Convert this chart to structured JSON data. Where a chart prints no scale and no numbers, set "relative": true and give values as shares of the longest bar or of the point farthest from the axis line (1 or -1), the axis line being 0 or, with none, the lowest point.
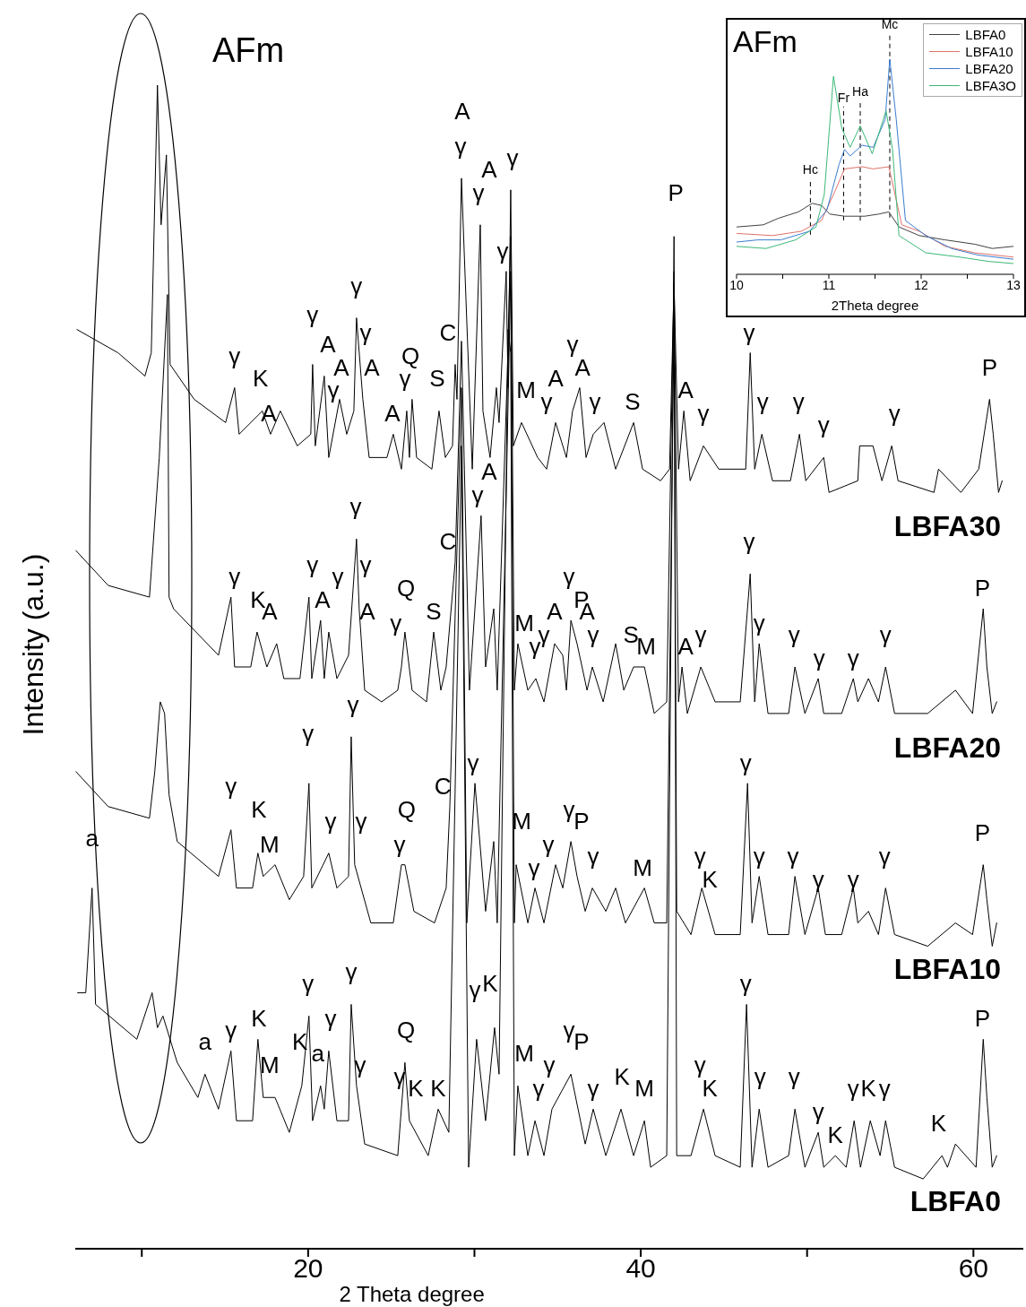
{
  "chart_data": [
    {
      "type": "line",
      "xlabel": "2 Theta degree",
      "ylabel": "Intensity (a.u.)",
      "relative": true,
      "xlim": [
        6,
        63
      ],
      "xticks": [
        {
          "value": 10,
          "label": null
        },
        20,
        {
          "value": 30,
          "label": null
        },
        40,
        {
          "value": 50,
          "label": null
        },
        60
      ],
      "series": [
        {
          "name": "LBFA30",
          "color": "#000000",
          "x": [
            6.1,
            8.57,
            10.19,
            10.57,
            10.94,
            11.16,
            11.48,
            11.7,
            13.15,
            15.04,
            15.58,
            15.85,
            17.25,
            17.74,
            18.33,
            19.35,
            20.16,
            20.27,
            20.43,
            20.97,
            21.24,
            21.89,
            22.32,
            22.75,
            22.91,
            23.29,
            23.67,
            24.74,
            25.12,
            25.61,
            25.93,
            26.09,
            26.25,
            26.52,
            27.44,
            27.87,
            28.25,
            28.68,
            28.84,
            28.95,
            29.22,
            29.87,
            30.35,
            30.51,
            30.94,
            31.32,
            31.48,
            31.91,
            32.02,
            32.18,
            32.34,
            32.83,
            33.8,
            34.34,
            34.88,
            35.53,
            35.9,
            36.33,
            36.71,
            37.14,
            37.79,
            38.49,
            39.57,
            40.11,
            41.19,
            41.73,
            42.0,
            42.27,
            42.59,
            42.97,
            43.77,
            44.69,
            46.31,
            46.58,
            46.85,
            47.28,
            47.92,
            49.0,
            49.54,
            49.92,
            51.0,
            51.32,
            53.05,
            53.16,
            53.96,
            54.5,
            55.09,
            55.47,
            57.63,
            57.9,
            59.25,
            60.32,
            60.97,
            61.19,
            61.51,
            61.73
          ],
          "values": [
            0.79,
            0.77,
            0.75,
            0.77,
            1.0,
            0.88,
            0.94,
            0.76,
            0.73,
            0.71,
            0.74,
            0.7,
            0.72,
            0.7,
            0.72,
            0.69,
            0.7,
            0.76,
            0.69,
            0.75,
            0.68,
            0.73,
            0.7,
            0.72,
            0.8,
            0.73,
            0.68,
            0.68,
            0.7,
            0.67,
            0.72,
            0.68,
            0.73,
            0.68,
            0.67,
            0.72,
            0.68,
            0.69,
            0.76,
            0.73,
            0.92,
            0.67,
            0.88,
            0.72,
            0.68,
            0.74,
            0.71,
            0.84,
            0.74,
            0.91,
            0.69,
            0.71,
            0.68,
            0.67,
            0.71,
            0.68,
            0.72,
            0.74,
            0.68,
            0.7,
            0.71,
            0.67,
            0.71,
            0.67,
            0.66,
            0.67,
            0.83,
            0.67,
            0.72,
            0.66,
            0.69,
            0.67,
            0.67,
            0.77,
            0.67,
            0.7,
            0.66,
            0.66,
            0.7,
            0.66,
            0.68,
            0.65,
            0.66,
            0.69,
            0.69,
            0.66,
            0.69,
            0.66,
            0.65,
            0.67,
            0.65,
            0.67,
            0.73,
            0.7,
            0.65,
            0.66
          ]
        },
        {
          "name": "LBFA20",
          "color": "#000000",
          "x": [
            6.04,
            7.98,
            10.46,
            11.05,
            11.54,
            11.64,
            11.91,
            14.61,
            15.36,
            15.58,
            16.55,
            16.93,
            17.52,
            18.11,
            18.54,
            19.51,
            20.05,
            20.22,
            20.75,
            20.97,
            21.24,
            21.73,
            22.43,
            22.91,
            23.07,
            23.4,
            24.42,
            25.39,
            25.61,
            25.82,
            26.25,
            27.12,
            27.55,
            27.98,
            28.3,
            28.84,
            29.22,
            29.7,
            30.4,
            30.67,
            31.16,
            31.37,
            31.97,
            32.18,
            32.4,
            32.61,
            33.21,
            33.69,
            34.18,
            34.82,
            35.31,
            35.53,
            35.8,
            36.17,
            36.77,
            37.09,
            37.74,
            38.49,
            38.98,
            39.57,
            40.22,
            40.81,
            41.56,
            42.0,
            42.27,
            42.48,
            42.8,
            43.61,
            44.47,
            45.98,
            46.58,
            46.85,
            47.12,
            47.65,
            48.89,
            49.27,
            49.87,
            50.67,
            51.0,
            52.08,
            52.78,
            53.05,
            53.69,
            54.29,
            54.72,
            55.26,
            57.25,
            58.92,
            59.95,
            60.59,
            60.81,
            61.13,
            61.4
          ],
          "values": [
            0.6,
            0.57,
            0.56,
            0.68,
            0.82,
            0.56,
            0.55,
            0.51,
            0.56,
            0.5,
            0.5,
            0.53,
            0.5,
            0.52,
            0.49,
            0.49,
            0.56,
            0.49,
            0.54,
            0.49,
            0.53,
            0.49,
            0.51,
            0.61,
            0.55,
            0.48,
            0.47,
            0.48,
            0.5,
            0.53,
            0.48,
            0.47,
            0.53,
            0.48,
            0.5,
            0.59,
            0.78,
            0.48,
            0.63,
            0.5,
            0.55,
            0.48,
            0.75,
            0.87,
            0.48,
            0.52,
            0.48,
            0.49,
            0.47,
            0.52,
            0.51,
            0.48,
            0.54,
            0.52,
            0.48,
            0.5,
            0.47,
            0.52,
            0.48,
            0.5,
            0.5,
            0.46,
            0.47,
            0.84,
            0.47,
            0.5,
            0.46,
            0.5,
            0.47,
            0.47,
            0.58,
            0.47,
            0.52,
            0.46,
            0.46,
            0.5,
            0.46,
            0.49,
            0.46,
            0.46,
            0.49,
            0.47,
            0.49,
            0.47,
            0.5,
            0.46,
            0.46,
            0.48,
            0.46,
            0.55,
            0.5,
            0.46,
            0.47
          ]
        },
        {
          "name": "LBFA10",
          "color": "#000000",
          "x": [
            6.04,
            7.98,
            10.46,
            10.78,
            11.11,
            11.37,
            11.64,
            12.13,
            14.61,
            15.36,
            15.69,
            16.66,
            16.98,
            17.3,
            18.01,
            18.87,
            19.73,
            20.05,
            20.22,
            21.24,
            21.73,
            22.43,
            22.59,
            22.8,
            23.77,
            25.12,
            25.61,
            25.82,
            26.36,
            27.6,
            28.3,
            28.52,
            29.22,
            29.54,
            30.03,
            30.67,
            31.16,
            31.37,
            31.97,
            32.18,
            32.4,
            32.51,
            33.21,
            33.64,
            34.18,
            34.88,
            35.31,
            35.8,
            36.17,
            36.66,
            37.09,
            37.9,
            38.49,
            39.08,
            40.22,
            40.81,
            41.56,
            42.0,
            42.16,
            43.02,
            43.67,
            44.47,
            45.98,
            46.42,
            46.69,
            47.12,
            47.65,
            48.89,
            49.27,
            49.87,
            50.67,
            51.1,
            52.08,
            52.78,
            53.05,
            53.69,
            54.29,
            54.72,
            55.26,
            57.25,
            58.92,
            59.95,
            60.59,
            60.81,
            61.13,
            61.4
          ],
          "values": [
            0.41,
            0.38,
            0.37,
            0.41,
            0.47,
            0.46,
            0.39,
            0.35,
            0.32,
            0.36,
            0.31,
            0.31,
            0.34,
            0.32,
            0.33,
            0.3,
            0.32,
            0.4,
            0.31,
            0.34,
            0.31,
            0.32,
            0.44,
            0.33,
            0.28,
            0.28,
            0.33,
            0.33,
            0.29,
            0.28,
            0.31,
            0.38,
            0.74,
            0.28,
            0.4,
            0.29,
            0.35,
            0.28,
            0.69,
            0.84,
            0.28,
            0.33,
            0.28,
            0.31,
            0.28,
            0.33,
            0.31,
            0.35,
            0.32,
            0.29,
            0.31,
            0.29,
            0.31,
            0.28,
            0.31,
            0.28,
            0.28,
            0.8,
            0.29,
            0.27,
            0.31,
            0.27,
            0.27,
            0.4,
            0.28,
            0.32,
            0.27,
            0.27,
            0.32,
            0.27,
            0.31,
            0.27,
            0.27,
            0.31,
            0.28,
            0.29,
            0.27,
            0.31,
            0.27,
            0.26,
            0.28,
            0.27,
            0.33,
            0.3,
            0.26,
            0.28
          ]
        },
        {
          "name": "LBFA0",
          "color": "#000000",
          "x": [
            6.14,
            6.63,
            7.01,
            7.22,
            9.7,
            10.62,
            10.94,
            11.27,
            12.13,
            13.37,
            13.8,
            14.61,
            15.36,
            15.69,
            16.66,
            16.98,
            17.3,
            18.01,
            18.87,
            19.62,
            20.05,
            20.27,
            20.75,
            20.97,
            21.24,
            21.73,
            22.43,
            22.59,
            22.91,
            23.4,
            25.39,
            25.82,
            26.09,
            27.22,
            27.82,
            28.46,
            29.22,
            29.65,
            30.13,
            30.67,
            31.21,
            31.48,
            32.02,
            32.18,
            32.4,
            32.61,
            33.21,
            33.64,
            34.18,
            34.66,
            35.42,
            35.8,
            36.66,
            37.14,
            37.9,
            38.81,
            39.57,
            40.22,
            40.59,
            41.56,
            42.0,
            42.16,
            43.02,
            43.77,
            44.47,
            45.98,
            46.36,
            46.69,
            47.12,
            47.65,
            48.89,
            49.27,
            49.87,
            50.67,
            51.0,
            51.7,
            52.35,
            52.83,
            53.21,
            53.8,
            54.39,
            54.72,
            55.26,
            56.98,
            58.11,
            58.44,
            58.92,
            60.16,
            60.59,
            60.81,
            61.13,
            61.4
          ],
          "values": [
            0.22,
            0.22,
            0.31,
            0.21,
            0.18,
            0.22,
            0.19,
            0.2,
            0.16,
            0.13,
            0.15,
            0.12,
            0.17,
            0.11,
            0.11,
            0.18,
            0.13,
            0.13,
            0.1,
            0.14,
            0.2,
            0.11,
            0.14,
            0.12,
            0.17,
            0.11,
            0.11,
            0.21,
            0.14,
            0.09,
            0.08,
            0.16,
            0.11,
            0.08,
            0.12,
            0.1,
            0.69,
            0.07,
            0.18,
            0.11,
            0.19,
            0.15,
            0.79,
            0.77,
            0.08,
            0.14,
            0.08,
            0.11,
            0.08,
            0.12,
            0.14,
            0.15,
            0.09,
            0.12,
            0.08,
            0.12,
            0.08,
            0.11,
            0.07,
            0.08,
            0.87,
            0.08,
            0.08,
            0.12,
            0.08,
            0.07,
            0.21,
            0.07,
            0.12,
            0.07,
            0.08,
            0.12,
            0.07,
            0.1,
            0.07,
            0.08,
            0.07,
            0.11,
            0.07,
            0.11,
            0.08,
            0.11,
            0.07,
            0.06,
            0.08,
            0.07,
            0.09,
            0.07,
            0.18,
            0.13,
            0.07,
            0.08
          ]
        }
      ],
      "annotations": [
        "AFm",
        "γ",
        "K",
        "A",
        "γ",
        "A",
        "γ",
        "A",
        "γ",
        "γ",
        "A",
        "A",
        "γ",
        "Q",
        "S",
        "C",
        "A",
        "γ",
        "A",
        "γ",
        "γ",
        "γ",
        "M",
        "γ",
        "A",
        "γ",
        "A",
        "γ",
        "S",
        "P",
        "A",
        "γ",
        "γ",
        "γ",
        "γ",
        "γ",
        "γ",
        "P",
        "γ",
        "K",
        "A",
        "γ",
        "A",
        "γ",
        "γ",
        "γ",
        "A",
        "γ",
        "Q",
        "S",
        "C",
        "γ",
        "A",
        "M",
        "γ",
        "γ",
        "A",
        "γ",
        "P",
        "A",
        "γ",
        "S",
        "M",
        "A",
        "γ",
        "γ",
        "γ",
        "γ",
        "γ",
        "γ",
        "γ",
        "P",
        "γ",
        "K",
        "M",
        "γ",
        "γ",
        "γ",
        "γ",
        "γ",
        "Q",
        "C",
        "γ",
        "M",
        "γ",
        "γ",
        "γ",
        "P",
        "γ",
        "M",
        "γ",
        "K",
        "γ",
        "γ",
        "γ",
        "γ",
        "γ",
        "γ",
        "P",
        "a",
        "a",
        "γ",
        "K",
        "M",
        "K",
        "a",
        "γ",
        "γ",
        "γ",
        "γ",
        "Q",
        "γ",
        "K",
        "K",
        "γ",
        "K",
        "M",
        "γ",
        "γ",
        "γ",
        "P",
        "γ",
        "K",
        "M",
        "γ",
        "K",
        "γ",
        "γ",
        "γ",
        "γ",
        "K",
        "γ",
        "K",
        "γ",
        "K",
        "P"
      ]
    },
    {
      "type": "line",
      "xlabel": "2Theta degree",
      "relative": true,
      "xlim": [
        10,
        13
      ],
      "xticks": [
        10,
        {
          "value": 10.5,
          "label": null
        },
        11,
        {
          "value": 11.5,
          "label": null
        },
        12,
        {
          "value": 12.5,
          "label": null
        },
        13
      ],
      "legend": "top right",
      "annotations": [
        "AFm"
      ],
      "series": [
        {
          "name": "LBFA0",
          "color": "#404040",
          "x": [
            10.0,
            10.29,
            10.45,
            10.67,
            10.82,
            10.92,
            11.01,
            11.17,
            11.39,
            11.54,
            11.65,
            11.76,
            11.98,
            12.26,
            12.58,
            12.77,
            13.0
          ],
          "values": [
            0.22,
            0.23,
            0.26,
            0.29,
            0.33,
            0.32,
            0.28,
            0.27,
            0.27,
            0.28,
            0.29,
            0.22,
            0.18,
            0.16,
            0.14,
            0.12,
            0.13
          ]
        },
        {
          "name": "LBFA10",
          "color": "#e0716b",
          "x": [
            10.0,
            10.39,
            10.7,
            10.92,
            11.07,
            11.17,
            11.36,
            11.48,
            11.65,
            11.79,
            11.98,
            12.26,
            12.58,
            13.0
          ],
          "values": [
            0.19,
            0.18,
            0.2,
            0.25,
            0.39,
            0.49,
            0.5,
            0.49,
            0.5,
            0.23,
            0.2,
            0.13,
            0.1,
            0.08
          ]
        },
        {
          "name": "LBFA20",
          "color": "#3a7dd0",
          "x": [
            10.0,
            10.23,
            10.48,
            10.79,
            10.98,
            11.11,
            11.17,
            11.23,
            11.36,
            11.48,
            11.61,
            11.66,
            11.73,
            11.83,
            12.05,
            12.33,
            12.61,
            13.0
          ],
          "values": [
            0.15,
            0.16,
            0.16,
            0.2,
            0.3,
            0.51,
            0.58,
            0.55,
            0.6,
            0.59,
            0.72,
            1.0,
            0.72,
            0.25,
            0.18,
            0.12,
            0.09,
            0.07
          ]
        },
        {
          "name": "LBFA3O",
          "color": "#3cb878",
          "x": [
            10.0,
            10.32,
            10.64,
            10.86,
            10.95,
            11.05,
            11.14,
            11.23,
            11.34,
            11.47,
            11.62,
            11.69,
            11.76,
            12.05,
            12.42,
            12.73,
            13.0
          ],
          "values": [
            0.13,
            0.12,
            0.16,
            0.22,
            0.37,
            0.92,
            0.68,
            0.59,
            0.69,
            0.56,
            0.76,
            0.58,
            0.18,
            0.1,
            0.08,
            0.06,
            0.05
          ]
        }
      ],
      "ref_lines": [
        {
          "axis": "x",
          "value": 10.8,
          "label": "Hc",
          "color": "#000000",
          "line_style": "dashed"
        },
        {
          "axis": "x",
          "value": 11.16,
          "label": "Fr",
          "color": "#000000",
          "line_style": "dashed"
        },
        {
          "axis": "x",
          "value": 11.34,
          "label": "Ha",
          "color": "#000000",
          "line_style": "dashed"
        },
        {
          "axis": "x",
          "value": 11.66,
          "label": "Mc",
          "color": "#000000",
          "line_style": "dashed"
        }
      ]
    }
  ]
}
